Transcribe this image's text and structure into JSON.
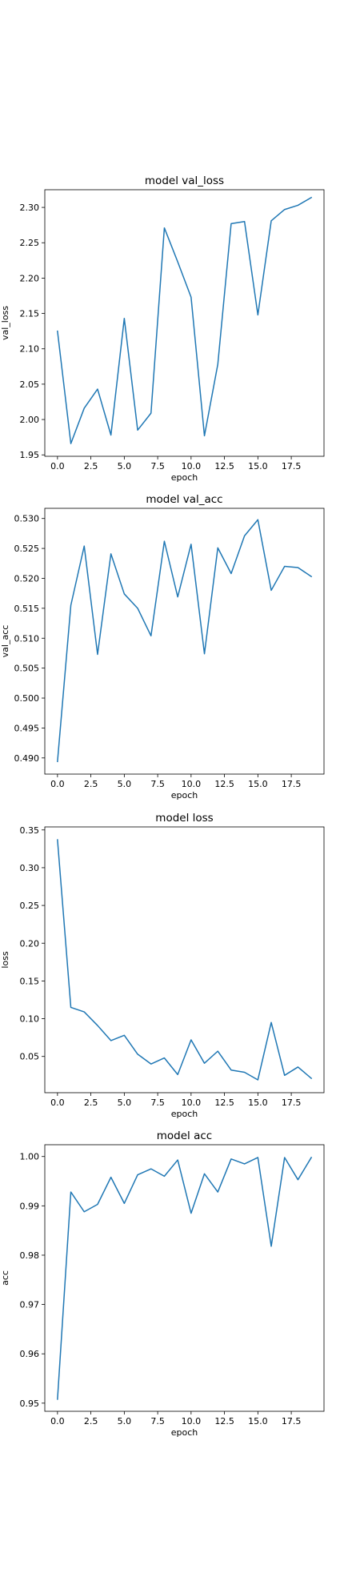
{
  "figure": {
    "background": "#ffffff"
  },
  "chart_data": [
    {
      "type": "line",
      "title": "model val_loss",
      "xlabel": "epoch",
      "ylabel": "val_loss",
      "xlim": [
        -0.95,
        19.95
      ],
      "ylim": [
        1.948,
        2.325
      ],
      "xticks": [
        0.0,
        2.5,
        5.0,
        7.5,
        10.0,
        12.5,
        15.0,
        17.5
      ],
      "xtick_labels": [
        "0.0",
        "2.5",
        "5.0",
        "7.5",
        "10.0",
        "12.5",
        "15.0",
        "17.5"
      ],
      "yticks": [
        1.95,
        2.0,
        2.05,
        2.1,
        2.15,
        2.2,
        2.25,
        2.3
      ],
      "ytick_labels": [
        "1.95",
        "2.00",
        "2.05",
        "2.10",
        "2.15",
        "2.20",
        "2.25",
        "2.30"
      ],
      "grid": false,
      "color": "#1f77b4",
      "x": [
        0,
        1,
        2,
        3,
        4,
        5,
        6,
        7,
        8,
        9,
        10,
        11,
        12,
        13,
        14,
        15,
        16,
        17,
        18,
        19
      ],
      "y": [
        2.125,
        1.966,
        2.016,
        2.043,
        1.978,
        2.143,
        1.985,
        2.009,
        2.271,
        2.223,
        2.173,
        1.977,
        2.078,
        2.277,
        2.28,
        2.148,
        2.281,
        2.297,
        2.303,
        2.314
      ]
    },
    {
      "type": "line",
      "title": "model val_acc",
      "xlabel": "epoch",
      "ylabel": "val_acc",
      "xlim": [
        -0.95,
        19.95
      ],
      "ylim": [
        0.4873,
        0.5317
      ],
      "xticks": [
        0.0,
        2.5,
        5.0,
        7.5,
        10.0,
        12.5,
        15.0,
        17.5
      ],
      "xtick_labels": [
        "0.0",
        "2.5",
        "5.0",
        "7.5",
        "10.0",
        "12.5",
        "15.0",
        "17.5"
      ],
      "yticks": [
        0.49,
        0.495,
        0.5,
        0.505,
        0.51,
        0.515,
        0.52,
        0.525,
        0.53
      ],
      "ytick_labels": [
        "0.490",
        "0.495",
        "0.500",
        "0.505",
        "0.510",
        "0.515",
        "0.520",
        "0.525",
        "0.530"
      ],
      "grid": false,
      "color": "#1f77b4",
      "x": [
        0,
        1,
        2,
        3,
        4,
        5,
        6,
        7,
        8,
        9,
        10,
        11,
        12,
        13,
        14,
        15,
        16,
        17,
        18,
        19
      ],
      "y": [
        0.4894,
        0.5155,
        0.5254,
        0.5073,
        0.5241,
        0.5174,
        0.515,
        0.5104,
        0.5262,
        0.5169,
        0.5257,
        0.5074,
        0.5251,
        0.5208,
        0.5271,
        0.5298,
        0.518,
        0.522,
        0.5218,
        0.5203
      ]
    },
    {
      "type": "line",
      "title": "model loss",
      "xlabel": "epoch",
      "ylabel": "loss",
      "xlim": [
        -0.95,
        19.95
      ],
      "ylim": [
        0.002,
        0.354
      ],
      "xticks": [
        0.0,
        2.5,
        5.0,
        7.5,
        10.0,
        12.5,
        15.0,
        17.5
      ],
      "xtick_labels": [
        "0.0",
        "2.5",
        "5.0",
        "7.5",
        "10.0",
        "12.5",
        "15.0",
        "17.5"
      ],
      "yticks": [
        0.05,
        0.1,
        0.15,
        0.2,
        0.25,
        0.3,
        0.35
      ],
      "ytick_labels": [
        "0.05",
        "0.10",
        "0.15",
        "0.20",
        "0.25",
        "0.30",
        "0.35"
      ],
      "grid": false,
      "color": "#1f77b4",
      "x": [
        0,
        1,
        2,
        3,
        4,
        5,
        6,
        7,
        8,
        9,
        10,
        11,
        12,
        13,
        14,
        15,
        16,
        17,
        18,
        19
      ],
      "y": [
        0.337,
        0.115,
        0.109,
        0.091,
        0.071,
        0.078,
        0.053,
        0.04,
        0.048,
        0.026,
        0.072,
        0.041,
        0.057,
        0.032,
        0.029,
        0.019,
        0.095,
        0.025,
        0.036,
        0.021
      ]
    },
    {
      "type": "line",
      "title": "model acc",
      "xlabel": "epoch",
      "ylabel": "acc",
      "xlim": [
        -0.95,
        19.95
      ],
      "ylim": [
        0.94835,
        1.00239
      ],
      "xticks": [
        0.0,
        2.5,
        5.0,
        7.5,
        10.0,
        12.5,
        15.0,
        17.5
      ],
      "xtick_labels": [
        "0.0",
        "2.5",
        "5.0",
        "7.5",
        "10.0",
        "12.5",
        "15.0",
        "17.5"
      ],
      "yticks": [
        0.95,
        0.96,
        0.97,
        0.98,
        0.99,
        1.0
      ],
      "ytick_labels": [
        "0.95",
        "0.96",
        "0.97",
        "0.98",
        "0.99",
        "1.00"
      ],
      "grid": false,
      "color": "#1f77b4",
      "x": [
        0,
        1,
        2,
        3,
        4,
        5,
        6,
        7,
        8,
        9,
        10,
        11,
        12,
        13,
        14,
        15,
        16,
        17,
        18,
        19
      ],
      "y": [
        0.9508,
        0.9928,
        0.9888,
        0.9903,
        0.9958,
        0.9905,
        0.9963,
        0.9975,
        0.996,
        0.9993,
        0.9885,
        0.9965,
        0.9928,
        0.9995,
        0.9985,
        0.9998,
        0.9818,
        0.9998,
        0.9953,
        0.9998
      ]
    }
  ]
}
